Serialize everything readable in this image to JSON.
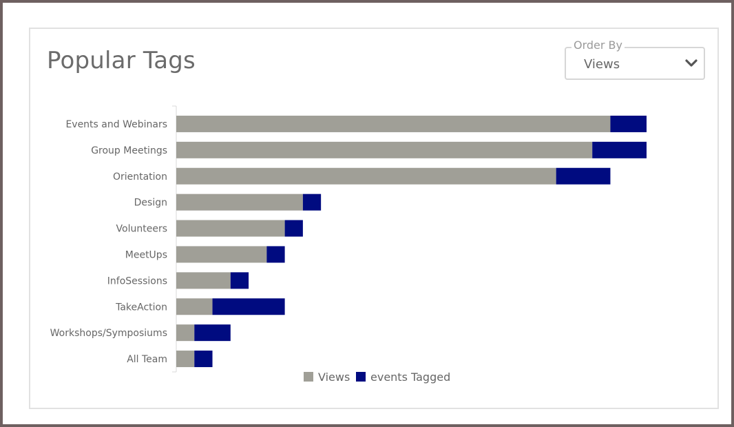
{
  "card": {
    "title": "Popular Tags",
    "order_by": {
      "label": "Order By",
      "value": "Views",
      "icon": "chevron-down-icon"
    }
  },
  "chart_data": {
    "type": "bar",
    "orientation": "horizontal",
    "stacked": true,
    "categories": [
      "Events and Webinars",
      "Group Meetings",
      "Orientation",
      "Design",
      "Volunteers",
      "MeetUps",
      "InfoSessions",
      "TakeAction",
      "Workshops/Symposiums",
      "All Team"
    ],
    "series": [
      {
        "name": "Views",
        "color": "#a09f97",
        "values": [
          240,
          230,
          210,
          70,
          60,
          50,
          30,
          20,
          10,
          10
        ]
      },
      {
        "name": "events Tagged",
        "color": "#000b80",
        "values": [
          20,
          30,
          30,
          10,
          10,
          10,
          10,
          40,
          20,
          10
        ]
      }
    ],
    "xlim": [
      0,
      260
    ],
    "grid": false,
    "legend": "bottom"
  }
}
